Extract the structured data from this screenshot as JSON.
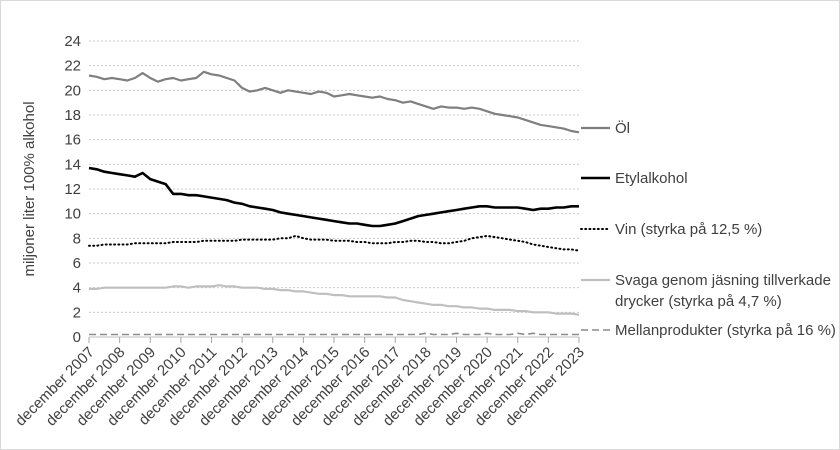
{
  "figure": {
    "background": "#ffffff",
    "border_color": "#d9d9d9",
    "text_color": "#404040",
    "gridline_color": "#c9c9c9",
    "axis_color": "#bfbfbf",
    "tick_color": "#a6a6a6"
  },
  "y_axis": {
    "title": "miljoner liter 100% alkohol",
    "min": 0,
    "max": 24,
    "tick_step": 2,
    "ticks": [
      0,
      2,
      4,
      6,
      8,
      10,
      12,
      14,
      16,
      18,
      20,
      22,
      24
    ]
  },
  "x_axis": {
    "labels": [
      "december 2007",
      "december 2008",
      "december 2009",
      "december 2010",
      "december 2011",
      "december 2012",
      "december 2013",
      "december 2014",
      "december 2015",
      "december 2016",
      "december 2017",
      "december 2018",
      "december 2019",
      "december 2020",
      "december 2021",
      "december 2022",
      "december 2023"
    ]
  },
  "chart_data": {
    "type": "line",
    "title": "",
    "xlabel": "",
    "ylabel": "miljoner liter 100% alkohol",
    "ylim": [
      0,
      24
    ],
    "grid": true,
    "legend_position": "right",
    "x_start": "december 2007",
    "x_end": "december 2023",
    "points_per_year": 4,
    "categories": [
      "december 2007",
      "december 2008",
      "december 2009",
      "december 2010",
      "december 2011",
      "december 2012",
      "december 2013",
      "december 2014",
      "december 2015",
      "december 2016",
      "december 2017",
      "december 2018",
      "december 2019",
      "december 2020",
      "december 2021",
      "december 2022",
      "december 2023"
    ],
    "series": [
      {
        "name": "Öl",
        "color": "#7f7f7f",
        "style": "solid",
        "width": 2.2,
        "values": [
          21.2,
          21.1,
          20.9,
          21.0,
          20.9,
          20.8,
          21.0,
          21.4,
          21.0,
          20.7,
          20.9,
          21.0,
          20.8,
          20.9,
          21.0,
          21.5,
          21.3,
          21.2,
          21.0,
          20.8,
          20.2,
          19.9,
          20.0,
          20.2,
          20.0,
          19.8,
          20.0,
          19.9,
          19.8,
          19.7,
          19.9,
          19.8,
          19.5,
          19.6,
          19.7,
          19.6,
          19.5,
          19.4,
          19.5,
          19.3,
          19.2,
          19.0,
          19.1,
          18.9,
          18.7,
          18.5,
          18.7,
          18.6,
          18.6,
          18.5,
          18.6,
          18.5,
          18.3,
          18.1,
          18.0,
          17.9,
          17.8,
          17.6,
          17.4,
          17.2,
          17.1,
          17.0,
          16.9,
          16.7,
          16.6
        ]
      },
      {
        "name": "Etylalkohol",
        "color": "#000000",
        "style": "solid",
        "width": 2.6,
        "values": [
          13.7,
          13.6,
          13.4,
          13.3,
          13.2,
          13.1,
          13.0,
          13.3,
          12.8,
          12.6,
          12.4,
          11.6,
          11.6,
          11.5,
          11.5,
          11.4,
          11.3,
          11.2,
          11.1,
          10.9,
          10.8,
          10.6,
          10.5,
          10.4,
          10.3,
          10.1,
          10.0,
          9.9,
          9.8,
          9.7,
          9.6,
          9.5,
          9.4,
          9.3,
          9.2,
          9.2,
          9.1,
          9.0,
          9.0,
          9.1,
          9.2,
          9.4,
          9.6,
          9.8,
          9.9,
          10.0,
          10.1,
          10.2,
          10.3,
          10.4,
          10.5,
          10.6,
          10.6,
          10.5,
          10.5,
          10.5,
          10.5,
          10.4,
          10.3,
          10.4,
          10.4,
          10.5,
          10.5,
          10.6,
          10.6
        ]
      },
      {
        "name": "Vin (styrka på 12,5 %)",
        "color": "#000000",
        "style": "dotted",
        "width": 2.0,
        "values": [
          7.4,
          7.4,
          7.5,
          7.5,
          7.5,
          7.5,
          7.6,
          7.6,
          7.6,
          7.6,
          7.6,
          7.7,
          7.7,
          7.7,
          7.7,
          7.8,
          7.8,
          7.8,
          7.8,
          7.8,
          7.9,
          7.9,
          7.9,
          7.9,
          7.9,
          8.0,
          8.0,
          8.2,
          8.0,
          7.9,
          7.9,
          7.9,
          7.8,
          7.8,
          7.8,
          7.7,
          7.7,
          7.6,
          7.6,
          7.6,
          7.7,
          7.7,
          7.8,
          7.8,
          7.7,
          7.7,
          7.6,
          7.6,
          7.7,
          7.8,
          8.0,
          8.1,
          8.2,
          8.1,
          8.0,
          7.9,
          7.8,
          7.7,
          7.5,
          7.4,
          7.3,
          7.2,
          7.1,
          7.1,
          7.0
        ]
      },
      {
        "name": "Svaga genom jäsning tillverkade drycker (styrka på 4,7 %)",
        "color": "#bfbfbf",
        "style": "solid",
        "width": 2.2,
        "values": [
          3.9,
          3.9,
          4.0,
          4.0,
          4.0,
          4.0,
          4.0,
          4.0,
          4.0,
          4.0,
          4.0,
          4.1,
          4.1,
          4.0,
          4.1,
          4.1,
          4.1,
          4.2,
          4.1,
          4.1,
          4.0,
          4.0,
          4.0,
          3.9,
          3.9,
          3.8,
          3.8,
          3.7,
          3.7,
          3.6,
          3.5,
          3.5,
          3.4,
          3.4,
          3.3,
          3.3,
          3.3,
          3.3,
          3.3,
          3.2,
          3.2,
          3.0,
          2.9,
          2.8,
          2.7,
          2.6,
          2.6,
          2.5,
          2.5,
          2.4,
          2.4,
          2.3,
          2.3,
          2.2,
          2.2,
          2.2,
          2.1,
          2.1,
          2.0,
          2.0,
          2.0,
          1.9,
          1.9,
          1.9,
          1.8
        ]
      },
      {
        "name": "Mellanprodukter (styrka på 16 %)",
        "color": "#8c8c8c",
        "style": "dashed",
        "width": 1.6,
        "values": [
          0.2,
          0.2,
          0.2,
          0.2,
          0.2,
          0.2,
          0.2,
          0.2,
          0.2,
          0.2,
          0.2,
          0.2,
          0.2,
          0.2,
          0.2,
          0.2,
          0.2,
          0.2,
          0.2,
          0.2,
          0.2,
          0.2,
          0.2,
          0.2,
          0.2,
          0.2,
          0.2,
          0.2,
          0.2,
          0.2,
          0.2,
          0.2,
          0.2,
          0.2,
          0.2,
          0.2,
          0.2,
          0.2,
          0.2,
          0.2,
          0.2,
          0.2,
          0.2,
          0.2,
          0.3,
          0.2,
          0.2,
          0.2,
          0.3,
          0.2,
          0.2,
          0.2,
          0.3,
          0.2,
          0.2,
          0.2,
          0.3,
          0.2,
          0.3,
          0.2,
          0.2,
          0.2,
          0.2,
          0.2,
          0.2
        ]
      }
    ]
  },
  "legend": {
    "items": [
      {
        "series_index": 0,
        "label_lines": [
          "Öl"
        ]
      },
      {
        "series_index": 1,
        "label_lines": [
          "Etylalkohol"
        ]
      },
      {
        "series_index": 2,
        "label_lines": [
          "Vin (styrka på 12,5 %)"
        ]
      },
      {
        "series_index": 3,
        "label_lines": [
          "Svaga genom jäsning tillverkade",
          "drycker (styrka på 4,7 %)"
        ]
      },
      {
        "series_index": 4,
        "label_lines": [
          "Mellanprodukter (styrka på 16 %)"
        ]
      }
    ]
  }
}
